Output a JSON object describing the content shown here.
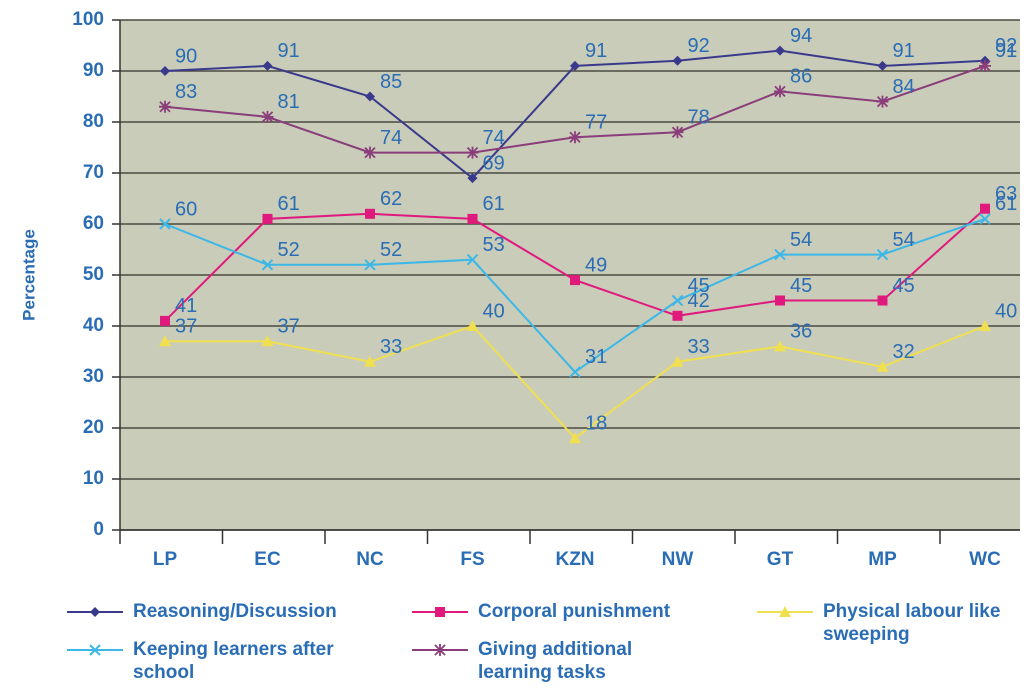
{
  "chart_data": {
    "type": "line",
    "y_label": "Percentage",
    "categories": [
      "LP",
      "EC",
      "NC",
      "FS",
      "KZN",
      "NW",
      "GT",
      "MP",
      "WC"
    ],
    "ylim": [
      0,
      100
    ],
    "yticks": [
      0,
      10,
      20,
      30,
      40,
      50,
      60,
      70,
      80,
      90,
      100
    ],
    "grid": true,
    "series": [
      {
        "name": "Reasoning/Discussion",
        "color": "#3a3a8c",
        "marker": "diamond",
        "values": [
          90,
          91,
          85,
          69,
          91,
          92,
          94,
          91,
          92
        ]
      },
      {
        "name": "Corporal punishment",
        "color": "#e0197d",
        "marker": "square",
        "values": [
          41,
          61,
          62,
          61,
          49,
          42,
          45,
          45,
          63
        ]
      },
      {
        "name": "Physical labour like sweeping",
        "color": "#f0e050",
        "marker": "triangle",
        "values": [
          37,
          37,
          33,
          40,
          18,
          33,
          36,
          32,
          40
        ]
      },
      {
        "name": "Keeping learners after school",
        "color": "#3bb7e8",
        "marker": "x",
        "values": [
          60,
          52,
          52,
          53,
          31,
          45,
          54,
          54,
          61
        ]
      },
      {
        "name": "Giving additional learning tasks",
        "color": "#8a3d7a",
        "marker": "star",
        "values": [
          83,
          81,
          74,
          74,
          77,
          78,
          86,
          84,
          91
        ]
      }
    ]
  }
}
